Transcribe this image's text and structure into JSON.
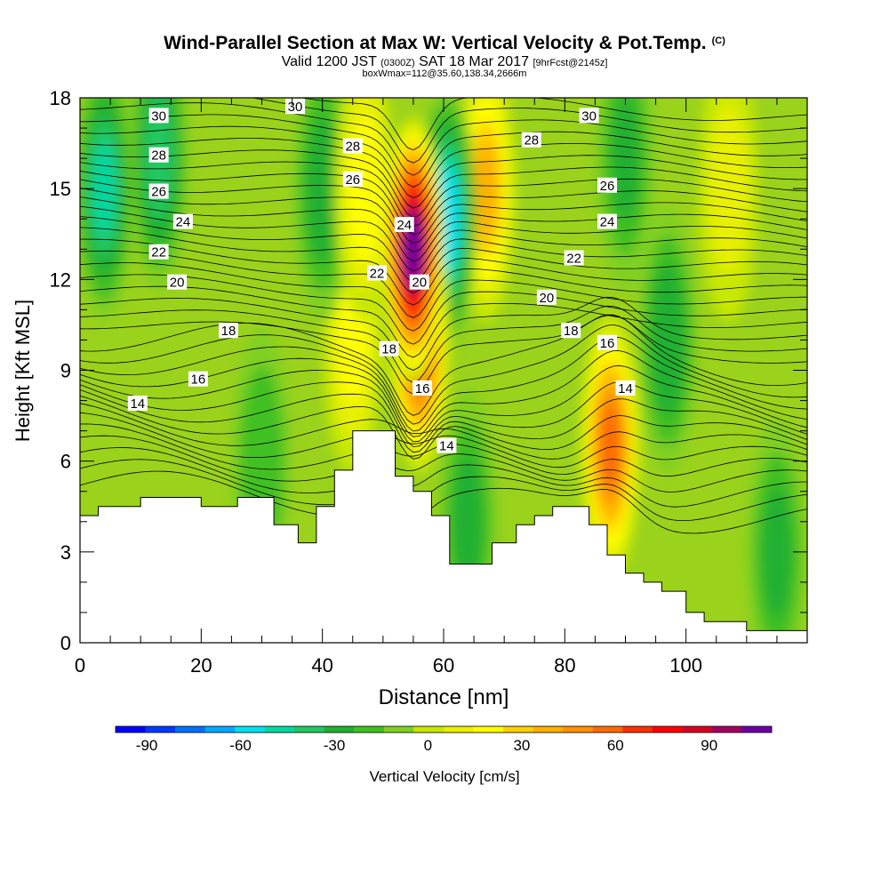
{
  "title": {
    "main": "Wind-Parallel Section at Max W: Vertical Velocity & Pot.Temp.",
    "copyright": "(C)",
    "valid_prefix": "Valid 1200 JST",
    "valid_utc": "(0300Z)",
    "valid_date": "SAT 18 Mar 2017",
    "forecast": "[9hrFcst@2145z]",
    "box_info": "boxWmax=112@35.60,138.34,2666m"
  },
  "chart_data": {
    "type": "heatmap",
    "xlabel": "Distance [nm]",
    "ylabel": "Height [Kft MSL]",
    "xlim": [
      0,
      120
    ],
    "ylim": [
      0,
      18
    ],
    "x_ticks": [
      0,
      20,
      40,
      60,
      80,
      100
    ],
    "y_ticks": [
      0,
      3,
      6,
      9,
      12,
      15,
      18
    ],
    "terrain": {
      "x": [
        0,
        3,
        3,
        10,
        10,
        20,
        20,
        26,
        26,
        32,
        32,
        36,
        36,
        39,
        39,
        42,
        42,
        45,
        45,
        48,
        48,
        52,
        52,
        55,
        55,
        58,
        58,
        61,
        61,
        68,
        68,
        72,
        72,
        75,
        75,
        78,
        78,
        84,
        84,
        87,
        87,
        90,
        90,
        93,
        93,
        96,
        96,
        100,
        100,
        103,
        103,
        110,
        110,
        120
      ],
      "kft": [
        4.2,
        4.2,
        4.5,
        4.5,
        4.8,
        4.8,
        4.5,
        4.5,
        4.8,
        4.8,
        3.9,
        3.9,
        3.3,
        3.3,
        4.5,
        4.5,
        5.7,
        5.7,
        7.0,
        7.0,
        7.0,
        7.0,
        5.5,
        5.5,
        5.0,
        5.0,
        4.2,
        4.2,
        2.6,
        2.6,
        3.3,
        3.3,
        3.9,
        3.9,
        4.2,
        4.2,
        4.5,
        4.5,
        3.9,
        3.9,
        2.9,
        2.9,
        2.3,
        2.3,
        2.0,
        2.0,
        1.7,
        1.7,
        1.0,
        1.0,
        0.7,
        0.7,
        0.4,
        0.4
      ]
    },
    "vertical_velocity": {
      "unit": "cm/s",
      "features": [
        {
          "x": 55,
          "kft": 13,
          "w": 110
        },
        {
          "x": 56,
          "kft": 10,
          "w": 70
        },
        {
          "x": 60.5,
          "kft": 14,
          "w": -55
        },
        {
          "x": 67,
          "kft": 15,
          "w": 40
        },
        {
          "x": 87.5,
          "kft": 6.5,
          "w": 60
        },
        {
          "x": 4,
          "kft": 15,
          "w": -40
        },
        {
          "x": 13,
          "kft": 16,
          "w": -35
        },
        {
          "x": 40,
          "kft": 15,
          "w": -25
        },
        {
          "x": 47,
          "kft": 15,
          "w": 25
        },
        {
          "x": 45,
          "kft": 10,
          "w": 20
        },
        {
          "x": 64,
          "kft": 4,
          "w": -22
        },
        {
          "x": 97,
          "kft": 10,
          "w": -28
        },
        {
          "x": 90,
          "kft": 16,
          "w": -20
        },
        {
          "x": 115,
          "kft": 3,
          "w": -22
        },
        {
          "x": 30,
          "kft": 6,
          "w": -18
        },
        {
          "x": 107,
          "kft": 15,
          "w": 12
        }
      ]
    },
    "potential_temperature_labels": [
      {
        "text": "30",
        "x": 13,
        "kft": 17.4
      },
      {
        "text": "30",
        "x": 35.5,
        "kft": 17.7
      },
      {
        "text": "30",
        "x": 84,
        "kft": 17.4
      },
      {
        "text": "28",
        "x": 13,
        "kft": 16.1
      },
      {
        "text": "28",
        "x": 45,
        "kft": 16.4
      },
      {
        "text": "28",
        "x": 74.5,
        "kft": 16.6
      },
      {
        "text": "26",
        "x": 13,
        "kft": 14.9
      },
      {
        "text": "26",
        "x": 45,
        "kft": 15.3
      },
      {
        "text": "26",
        "x": 87,
        "kft": 15.1
      },
      {
        "text": "24",
        "x": 17,
        "kft": 13.9
      },
      {
        "text": "24",
        "x": 53.5,
        "kft": 13.8
      },
      {
        "text": "24",
        "x": 87,
        "kft": 13.9
      },
      {
        "text": "22",
        "x": 13,
        "kft": 12.9
      },
      {
        "text": "22",
        "x": 49,
        "kft": 12.2
      },
      {
        "text": "22",
        "x": 81.5,
        "kft": 12.7
      },
      {
        "text": "20",
        "x": 16,
        "kft": 11.9
      },
      {
        "text": "20",
        "x": 56,
        "kft": 11.9
      },
      {
        "text": "20",
        "x": 77,
        "kft": 11.4
      },
      {
        "text": "18",
        "x": 24.5,
        "kft": 10.3
      },
      {
        "text": "18",
        "x": 51,
        "kft": 9.7
      },
      {
        "text": "18",
        "x": 81,
        "kft": 10.3
      },
      {
        "text": "16",
        "x": 19.5,
        "kft": 8.7
      },
      {
        "text": "16",
        "x": 56.5,
        "kft": 8.4
      },
      {
        "text": "16",
        "x": 87,
        "kft": 9.9
      },
      {
        "text": "14",
        "x": 9.5,
        "kft": 7.9
      },
      {
        "text": "14",
        "x": 60.5,
        "kft": 6.5
      },
      {
        "text": "14",
        "x": 90,
        "kft": 8.4
      }
    ]
  },
  "colorbar": {
    "title": "Vertical Velocity [cm/s]",
    "min": -100,
    "max": 110,
    "step": 10,
    "tick_values": [
      -90,
      -60,
      -30,
      0,
      30,
      60,
      90
    ],
    "tick_labels": [
      "-90",
      "-60",
      "-30",
      "0",
      "30",
      "60",
      "90"
    ],
    "colors": [
      "#0000ff",
      "#0038ff",
      "#0070ff",
      "#00a8ff",
      "#00e0f0",
      "#00d8a0",
      "#20c860",
      "#20b030",
      "#40c020",
      "#80d020",
      "#c8e800",
      "#e8f000",
      "#ffff00",
      "#ffd000",
      "#ffb000",
      "#ff9000",
      "#ff6a00",
      "#ff3000",
      "#ff0000",
      "#d80020",
      "#a00060",
      "#6a00a0"
    ]
  }
}
